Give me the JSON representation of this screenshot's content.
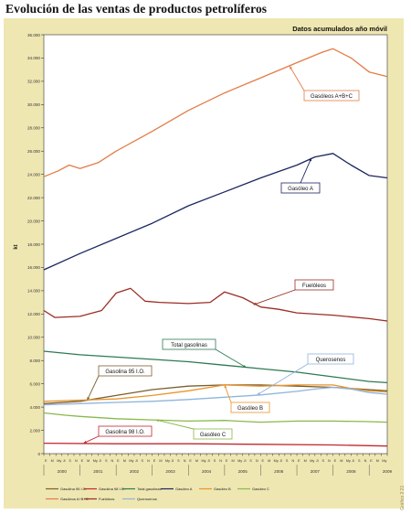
{
  "page": {
    "title": "Evolución de las ventas de productos petrolíferos",
    "subtitle": "Datos acumulados año móvil",
    "side_note": "Gráfico 2.21"
  },
  "chart_data": {
    "type": "line",
    "title": "Evolución de las ventas de productos petrolíferos",
    "subtitle": "Datos acumulados año móvil",
    "ylabel": "kt",
    "xlabel": "",
    "ylim": [
      0,
      36000
    ],
    "yticks": [
      "0",
      "2.000",
      "4.000",
      "6.000",
      "8.000",
      "10.000",
      "12.000",
      "14.000",
      "16.000",
      "18.000",
      "20.000",
      "22.000",
      "24.000",
      "26.000",
      "28.000",
      "30.000",
      "32.000",
      "34.000",
      "36.000"
    ],
    "x_years": [
      "2000",
      "2001",
      "2002",
      "2003",
      "2004",
      "2005",
      "2006",
      "2007",
      "2008",
      "2009"
    ],
    "x_month_labels": [
      "E",
      "M",
      "My",
      "Jl",
      "S",
      "N"
    ],
    "x_range": [
      2000.0,
      2009.5
    ],
    "grid": false,
    "legend_position": "bottom",
    "series": [
      {
        "name": "Gasolina 95 I.O.",
        "color": "#7a5f2e",
        "label": "Gasolina 95 I.O.",
        "points": [
          [
            2000.0,
            4300
          ],
          [
            2001.0,
            4500
          ],
          [
            2002.0,
            5000
          ],
          [
            2003.0,
            5500
          ],
          [
            2004.0,
            5800
          ],
          [
            2005.0,
            5900
          ],
          [
            2006.0,
            5900
          ],
          [
            2007.0,
            5800
          ],
          [
            2008.0,
            5700
          ],
          [
            2009.0,
            5500
          ],
          [
            2009.5,
            5400
          ]
        ]
      },
      {
        "name": "Gasolina 98 I.O.",
        "color": "#c0282e",
        "label": "Gasolina 98 I.O.",
        "points": [
          [
            2000.0,
            900
          ],
          [
            2002.0,
            850
          ],
          [
            2004.0,
            850
          ],
          [
            2006.0,
            800
          ],
          [
            2008.0,
            750
          ],
          [
            2009.5,
            650
          ]
        ]
      },
      {
        "name": "Total gasolinas",
        "color": "#2e7a52",
        "label": "Total gasolinas",
        "points": [
          [
            2000.0,
            8800
          ],
          [
            2001.0,
            8500
          ],
          [
            2002.0,
            8300
          ],
          [
            2003.0,
            8100
          ],
          [
            2004.0,
            7900
          ],
          [
            2005.0,
            7600
          ],
          [
            2006.0,
            7300
          ],
          [
            2007.0,
            7000
          ],
          [
            2008.0,
            6600
          ],
          [
            2009.0,
            6200
          ],
          [
            2009.5,
            6100
          ]
        ]
      },
      {
        "name": "Gasóleo A",
        "color": "#1c2560",
        "label": "Gasóleo A",
        "points": [
          [
            2000.0,
            15800
          ],
          [
            2001.0,
            17200
          ],
          [
            2002.0,
            18500
          ],
          [
            2003.0,
            19800
          ],
          [
            2004.0,
            21300
          ],
          [
            2005.0,
            22500
          ],
          [
            2006.0,
            23700
          ],
          [
            2007.0,
            24800
          ],
          [
            2007.5,
            25500
          ],
          [
            2008.0,
            25800
          ],
          [
            2008.5,
            24800
          ],
          [
            2009.0,
            23900
          ],
          [
            2009.5,
            23700
          ]
        ]
      },
      {
        "name": "Gasóleo B",
        "color": "#e8942e",
        "label": "Gasóleo B",
        "points": [
          [
            2000.0,
            4500
          ],
          [
            2001.0,
            4600
          ],
          [
            2002.0,
            4700
          ],
          [
            2003.0,
            5000
          ],
          [
            2004.0,
            5400
          ],
          [
            2005.0,
            5900
          ],
          [
            2006.0,
            5800
          ],
          [
            2007.0,
            5900
          ],
          [
            2008.0,
            5900
          ],
          [
            2008.5,
            5600
          ],
          [
            2009.0,
            5400
          ],
          [
            2009.5,
            5300
          ]
        ]
      },
      {
        "name": "Gasóleo C",
        "color": "#8ab84a",
        "label": "Gasóleo C",
        "points": [
          [
            2000.0,
            3500
          ],
          [
            2000.6,
            3300
          ],
          [
            2001.0,
            3200
          ],
          [
            2002.0,
            3000
          ],
          [
            2003.0,
            2900
          ],
          [
            2004.0,
            2800
          ],
          [
            2005.0,
            2850
          ],
          [
            2006.0,
            2700
          ],
          [
            2007.0,
            2800
          ],
          [
            2008.0,
            2800
          ],
          [
            2009.0,
            2750
          ],
          [
            2009.5,
            2700
          ]
        ]
      },
      {
        "name": "Gasóleos A+B+C",
        "color": "#e37c46",
        "label": "Gasóleos A+B+C",
        "points": [
          [
            2000.0,
            23800
          ],
          [
            2000.4,
            24300
          ],
          [
            2000.7,
            24800
          ],
          [
            2001.0,
            24500
          ],
          [
            2001.5,
            25000
          ],
          [
            2002.0,
            26000
          ],
          [
            2003.0,
            27700
          ],
          [
            2004.0,
            29500
          ],
          [
            2005.0,
            31000
          ],
          [
            2006.0,
            32300
          ],
          [
            2007.0,
            33600
          ],
          [
            2007.7,
            34500
          ],
          [
            2008.0,
            34800
          ],
          [
            2008.5,
            34000
          ],
          [
            2009.0,
            32800
          ],
          [
            2009.5,
            32400
          ]
        ]
      },
      {
        "name": "Fuelóleos",
        "color": "#9b2d24",
        "label": "Fuelóleos",
        "points": [
          [
            2000.0,
            12300
          ],
          [
            2000.3,
            11700
          ],
          [
            2001.0,
            11800
          ],
          [
            2001.6,
            12300
          ],
          [
            2002.0,
            13800
          ],
          [
            2002.4,
            14200
          ],
          [
            2002.8,
            13100
          ],
          [
            2003.2,
            13000
          ],
          [
            2004.0,
            12900
          ],
          [
            2004.6,
            13000
          ],
          [
            2005.0,
            13900
          ],
          [
            2005.5,
            13400
          ],
          [
            2006.0,
            12600
          ],
          [
            2006.5,
            12400
          ],
          [
            2007.0,
            12100
          ],
          [
            2008.0,
            11900
          ],
          [
            2009.0,
            11600
          ],
          [
            2009.5,
            11400
          ]
        ]
      },
      {
        "name": "Querosenos",
        "color": "#8fb4dc",
        "label": "Querosenos",
        "points": [
          [
            2000.0,
            4200
          ],
          [
            2001.0,
            4300
          ],
          [
            2002.0,
            4400
          ],
          [
            2003.0,
            4500
          ],
          [
            2004.0,
            4650
          ],
          [
            2005.0,
            4850
          ],
          [
            2006.0,
            5050
          ],
          [
            2007.0,
            5350
          ],
          [
            2007.5,
            5550
          ],
          [
            2008.0,
            5700
          ],
          [
            2008.5,
            5550
          ],
          [
            2009.0,
            5250
          ],
          [
            2009.5,
            5100
          ]
        ]
      }
    ],
    "legend": [
      "Gasolina 95 I.O.",
      "Gasolina 98 I.O.",
      "Total gasolinas",
      "Gasóleo A",
      "Gasóleo B",
      "Gasóleo C",
      "Gasóleos A+B+C",
      "Fuelóleos",
      "Querosenos"
    ]
  }
}
